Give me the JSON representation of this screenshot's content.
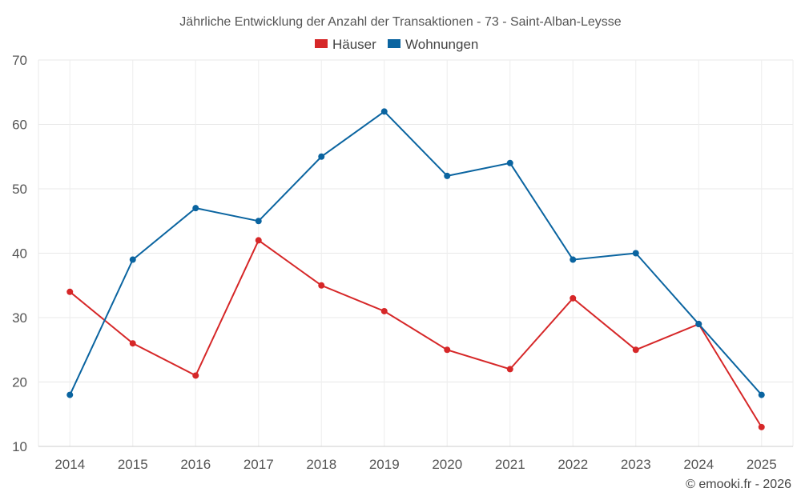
{
  "chart_data": {
    "type": "line",
    "title": "Jährliche Entwicklung der Anzahl der Transaktionen - 73 - Saint-Alban-Leysse",
    "categories": [
      "2014",
      "2015",
      "2016",
      "2017",
      "2018",
      "2019",
      "2020",
      "2021",
      "2022",
      "2023",
      "2024",
      "2025"
    ],
    "series": [
      {
        "name": "Häuser",
        "color": "#d62728",
        "values": [
          34,
          26,
          21,
          42,
          35,
          31,
          25,
          22,
          33,
          25,
          29,
          13
        ]
      },
      {
        "name": "Wohnungen",
        "color": "#0a64a0",
        "values": [
          18,
          39,
          47,
          45,
          55,
          62,
          52,
          54,
          39,
          40,
          29,
          18
        ]
      }
    ],
    "ylim": [
      10,
      70
    ],
    "yticks": [
      10,
      20,
      30,
      40,
      50,
      60,
      70
    ],
    "xlabel": "",
    "ylabel": "",
    "grid": true,
    "legend": "top-center"
  },
  "credit": "© emooki.fr - 2026"
}
